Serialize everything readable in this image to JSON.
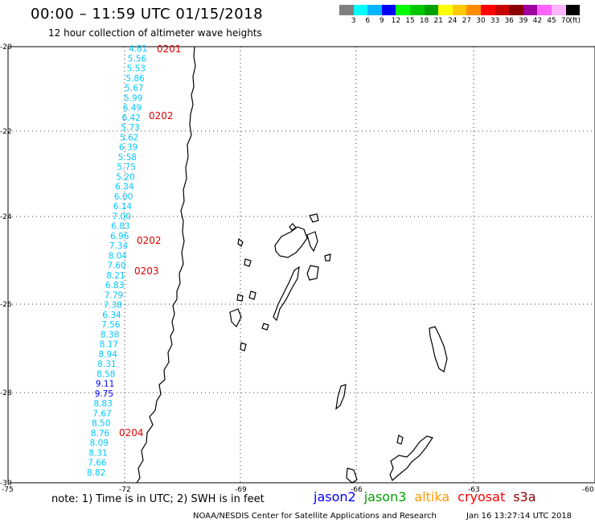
{
  "header": {
    "title": "00:00 – 11:59 UTC 01/15/2018",
    "subtitle": "12 hour collection of altimeter wave heights"
  },
  "colorbar": {
    "colors": [
      "#7f7f7f",
      "#00ffff",
      "#00b4ff",
      "#0000ff",
      "#00ff00",
      "#00c800",
      "#00a000",
      "#ffff00",
      "#ffc800",
      "#ff8c00",
      "#ff0000",
      "#c80000",
      "#8c0000",
      "#a000a0",
      "#ff64ff",
      "#ffb4ff",
      "#000000"
    ],
    "tick_labels": [
      "3",
      "6",
      "9",
      "12",
      "15",
      "18",
      "21",
      "24",
      "27",
      "30",
      "33",
      "36",
      "39",
      "42",
      "45",
      "70",
      "(ft)"
    ]
  },
  "map": {
    "lon_labels": [
      "-75",
      "-72",
      "-69",
      "-66",
      "-63",
      "-60"
    ],
    "lat_labels": [
      "-20",
      "-22",
      "-24",
      "-26",
      "-28",
      "-30"
    ],
    "track_values": [
      {
        "v": "4.81",
        "c": "#00c8ff"
      },
      {
        "v": "5.56",
        "c": "#00c8ff"
      },
      {
        "v": "5.53",
        "c": "#00c8ff"
      },
      {
        "v": "5.86",
        "c": "#00c8ff"
      },
      {
        "v": "5.67",
        "c": "#00c8ff"
      },
      {
        "v": "5.99",
        "c": "#00c8ff"
      },
      {
        "v": "6.49",
        "c": "#00c8ff"
      },
      {
        "v": "6.42",
        "c": "#00c8ff"
      },
      {
        "v": "5.73",
        "c": "#00c8ff"
      },
      {
        "v": "5.62",
        "c": "#00c8ff"
      },
      {
        "v": "6.39",
        "c": "#00c8ff"
      },
      {
        "v": "5.58",
        "c": "#00c8ff"
      },
      {
        "v": "5.75",
        "c": "#00c8ff"
      },
      {
        "v": "5.20",
        "c": "#00c8ff"
      },
      {
        "v": "6.34",
        "c": "#00c8ff"
      },
      {
        "v": "6.00",
        "c": "#00c8ff"
      },
      {
        "v": "6.14",
        "c": "#00c8ff"
      },
      {
        "v": "7.00",
        "c": "#00c8ff"
      },
      {
        "v": "6.83",
        "c": "#00c8ff"
      },
      {
        "v": "6.96",
        "c": "#00c8ff"
      },
      {
        "v": "7.34",
        "c": "#00c8ff"
      },
      {
        "v": "8.04",
        "c": "#00c8ff"
      },
      {
        "v": "7.60",
        "c": "#00c8ff"
      },
      {
        "v": "8.21",
        "c": "#00c8ff"
      },
      {
        "v": "6.83",
        "c": "#00c8ff"
      },
      {
        "v": "7.79",
        "c": "#00c8ff"
      },
      {
        "v": "7.38",
        "c": "#00c8ff"
      },
      {
        "v": "6.34",
        "c": "#00c8ff"
      },
      {
        "v": "7.56",
        "c": "#00c8ff"
      },
      {
        "v": "8.38",
        "c": "#00c8ff"
      },
      {
        "v": "8.17",
        "c": "#00c8ff"
      },
      {
        "v": "8.94",
        "c": "#00c8ff"
      },
      {
        "v": "8.31",
        "c": "#00c8ff"
      },
      {
        "v": "8.58",
        "c": "#00c8ff"
      },
      {
        "v": "9.11",
        "c": "#0000ff"
      },
      {
        "v": "9.75",
        "c": "#0000ff"
      },
      {
        "v": "8.83",
        "c": "#00c8ff"
      },
      {
        "v": "7.67",
        "c": "#00c8ff"
      },
      {
        "v": "8.50",
        "c": "#00c8ff"
      },
      {
        "v": "8.76",
        "c": "#00c8ff"
      },
      {
        "v": "8.09",
        "c": "#00c8ff"
      },
      {
        "v": "8.31",
        "c": "#00c8ff"
      },
      {
        "v": "7.66",
        "c": "#00c8ff"
      },
      {
        "v": "8.82",
        "c": "#00c8ff"
      }
    ],
    "time_labels": [
      "0201",
      "0202",
      "0202",
      "0203",
      "0204"
    ]
  },
  "footer": {
    "note": "note:  1) Time is in UTC;  2) SWH is in feet",
    "satellites": [
      {
        "name": "jason2",
        "color": "#0000ff"
      },
      {
        "name": "jason3",
        "color": "#00a000"
      },
      {
        "name": "altika",
        "color": "#ff9900"
      },
      {
        "name": "cryosat",
        "color": "#ff0000"
      },
      {
        "name": "s3a",
        "color": "#8c0000"
      }
    ],
    "credit": "NOAA/NESDIS Center for Satellite Applications and Research",
    "stamp": "Jan 16 13:27:14 UTC 2018"
  }
}
